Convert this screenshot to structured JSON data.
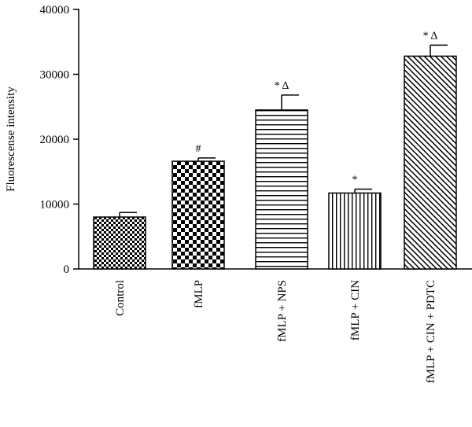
{
  "chart_data": {
    "type": "bar",
    "title": "",
    "xlabel": "",
    "ylabel": "Fluorescense intensity",
    "ylim": [
      0,
      40000
    ],
    "yticks": [
      "0",
      "10000",
      "20000",
      "30000",
      "40000"
    ],
    "ytick_values": [
      0,
      10000,
      20000,
      30000,
      40000
    ],
    "grid": false,
    "categories": [
      "Control",
      "fMLP",
      "fMLP + NPS",
      "fMLP + CIN",
      "fMLP + CIN + PDTC"
    ],
    "values": [
      8000,
      16600,
      24500,
      11700,
      32800
    ],
    "errors": [
      700,
      500,
      2300,
      600,
      1700
    ],
    "annotations": [
      "",
      "#",
      "*Δ",
      "*",
      "*Δ"
    ],
    "patterns": [
      "small-checker",
      "large-checker",
      "horizontal-lines",
      "vertical-lines",
      "diagonal-lines"
    ],
    "colors": {
      "bar_stroke": "#000000",
      "pattern": "#000000",
      "background": "#ffffff"
    }
  }
}
